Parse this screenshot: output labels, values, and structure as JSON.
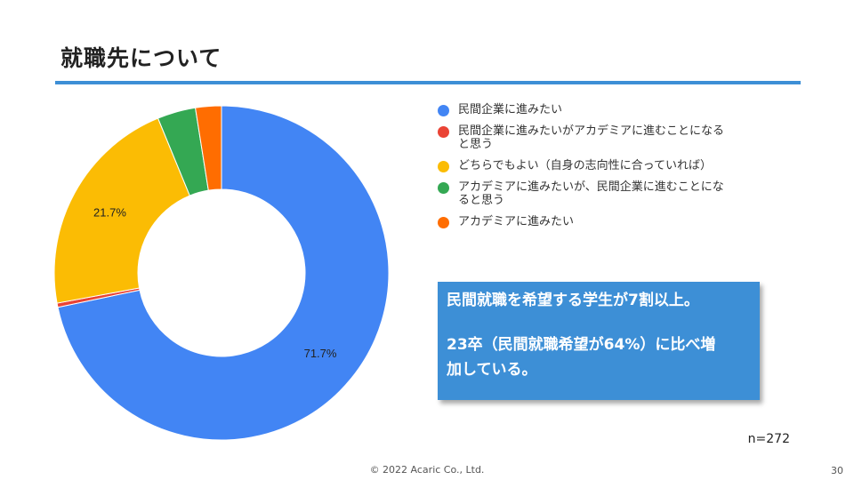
{
  "slide": {
    "title": "就職先について",
    "sample_size": "n=272",
    "footer": "© 2022 Acaric Co., Ltd.",
    "page_number": "30",
    "rule_color": "#3d8fd6"
  },
  "callout": {
    "line1": "民間就職を希望する学生が7割以上。",
    "line2": "23卒（民間就職希望が64%）に比べ増",
    "line3": "加している。",
    "background": "#3d8fd6"
  },
  "chart_data": {
    "type": "pie",
    "donut": true,
    "legend_position": "right",
    "series": [
      {
        "name": "民間企業に進みたい",
        "value": 71.7,
        "label": "71.7%",
        "color": "#4285f4"
      },
      {
        "name": "民間企業に進みたいがアカデミアに進むことになると思う",
        "value": 0.4,
        "label": "",
        "color": "#ea4335"
      },
      {
        "name": "どちらでもよい（自身の志向性に合っていれば）",
        "value": 21.7,
        "label": "21.7%",
        "color": "#fbbc04"
      },
      {
        "name": "アカデミアに進みたいが、民間企業に進むことになると思う",
        "value": 3.7,
        "label": "",
        "color": "#34a853"
      },
      {
        "name": "アカデミアに進みたい",
        "value": 2.5,
        "label": "",
        "color": "#ff6d01"
      }
    ]
  }
}
